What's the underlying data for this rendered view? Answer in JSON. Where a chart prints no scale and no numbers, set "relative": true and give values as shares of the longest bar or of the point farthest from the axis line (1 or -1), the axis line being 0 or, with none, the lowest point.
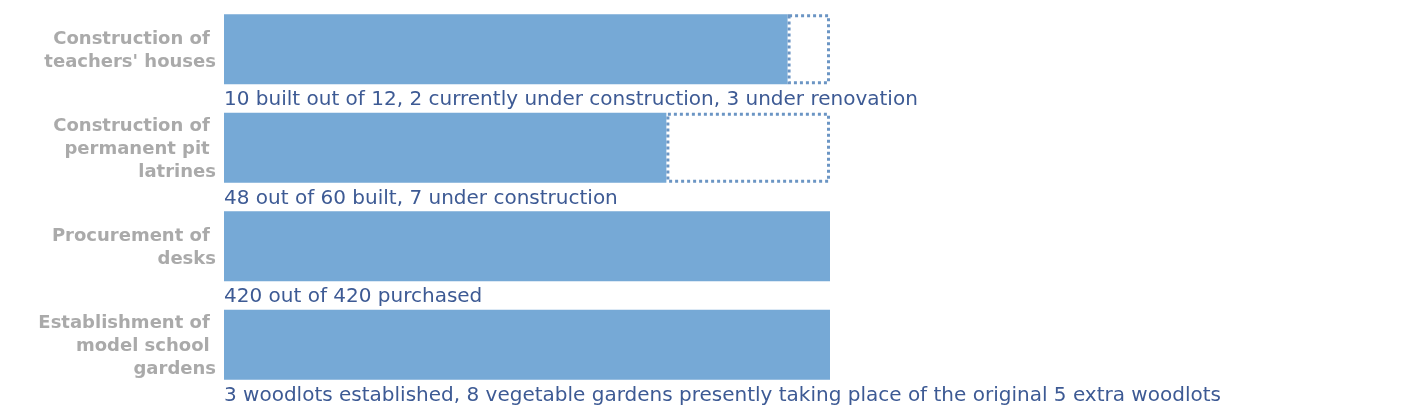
{
  "chart_data": {
    "type": "bar",
    "orientation": "horizontal",
    "stacked": true,
    "relative": true,
    "categories": [
      "Construction of teachers' houses",
      "Construction of permanent pit latrines",
      "Procurement of desks",
      "Establishment of model school gardens"
    ],
    "series": [
      {
        "color": "#76a9d6",
        "values": [
          0.93,
          0.73,
          1,
          1
        ]
      },
      {
        "color": "#6b95c4",
        "line_style": "dotted",
        "values": [
          0.07,
          0.27,
          0,
          0
        ]
      }
    ],
    "annotations": [
      "10 built out of 12, 2 currently under construction, 3 under renovation",
      "48 out of 60 built, 7 under construction",
      "420 out of 420 purchased",
      "3 woodlots established, 8 vegetable gardens presently taking place of the original 5 extra woodlots"
    ],
    "grid": false
  }
}
